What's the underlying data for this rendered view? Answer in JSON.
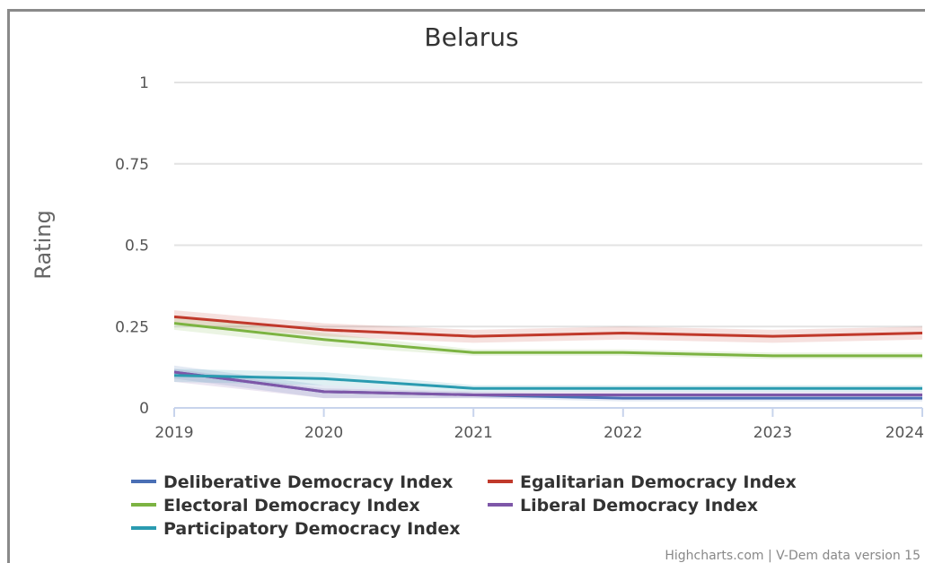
{
  "chart_data": {
    "type": "line",
    "title": "Belarus",
    "xlabel": "",
    "ylabel": "Rating",
    "x": [
      "2019",
      "2020",
      "2021",
      "2022",
      "2023",
      "2024"
    ],
    "yticks": [
      "0",
      "0.25",
      "0.5",
      "0.75",
      "1"
    ],
    "ylim": [
      0,
      1
    ],
    "grid": true,
    "legend_position": "bottom",
    "series": [
      {
        "name": "Deliberative Democracy Index",
        "color": "#4a6fb5",
        "values": [
          0.11,
          0.05,
          0.04,
          0.03,
          0.03,
          0.03
        ],
        "band": [
          [
            0.09,
            0.13
          ],
          [
            0.03,
            0.07
          ],
          [
            0.03,
            0.05
          ],
          [
            0.02,
            0.04
          ],
          [
            0.02,
            0.04
          ],
          [
            0.02,
            0.04
          ]
        ]
      },
      {
        "name": "Egalitarian Democracy Index",
        "color": "#c0392b",
        "values": [
          0.28,
          0.24,
          0.22,
          0.23,
          0.22,
          0.23
        ],
        "band": [
          [
            0.26,
            0.3
          ],
          [
            0.22,
            0.26
          ],
          [
            0.2,
            0.24
          ],
          [
            0.21,
            0.25
          ],
          [
            0.2,
            0.24
          ],
          [
            0.21,
            0.25
          ]
        ]
      },
      {
        "name": "Electoral Democracy Index",
        "color": "#7cb342",
        "values": [
          0.26,
          0.21,
          0.17,
          0.17,
          0.16,
          0.16
        ],
        "band": [
          [
            0.24,
            0.28
          ],
          [
            0.19,
            0.23
          ],
          [
            0.16,
            0.18
          ],
          [
            0.16,
            0.18
          ],
          [
            0.15,
            0.17
          ],
          [
            0.15,
            0.17
          ]
        ]
      },
      {
        "name": "Liberal Democracy Index",
        "color": "#7e57a8",
        "values": [
          0.11,
          0.05,
          0.04,
          0.04,
          0.04,
          0.04
        ],
        "band": [
          [
            0.08,
            0.12
          ],
          [
            0.03,
            0.06
          ],
          [
            0.03,
            0.05
          ],
          [
            0.03,
            0.05
          ],
          [
            0.03,
            0.05
          ],
          [
            0.03,
            0.05
          ]
        ]
      },
      {
        "name": "Participatory Democracy Index",
        "color": "#2a9bb0",
        "values": [
          0.1,
          0.09,
          0.06,
          0.06,
          0.06,
          0.06
        ],
        "band": [
          [
            0.08,
            0.12
          ],
          [
            0.07,
            0.11
          ],
          [
            0.05,
            0.07
          ],
          [
            0.05,
            0.07
          ],
          [
            0.05,
            0.07
          ],
          [
            0.05,
            0.07
          ]
        ]
      }
    ]
  },
  "credits": "Highcharts.com | V-Dem data version 15"
}
